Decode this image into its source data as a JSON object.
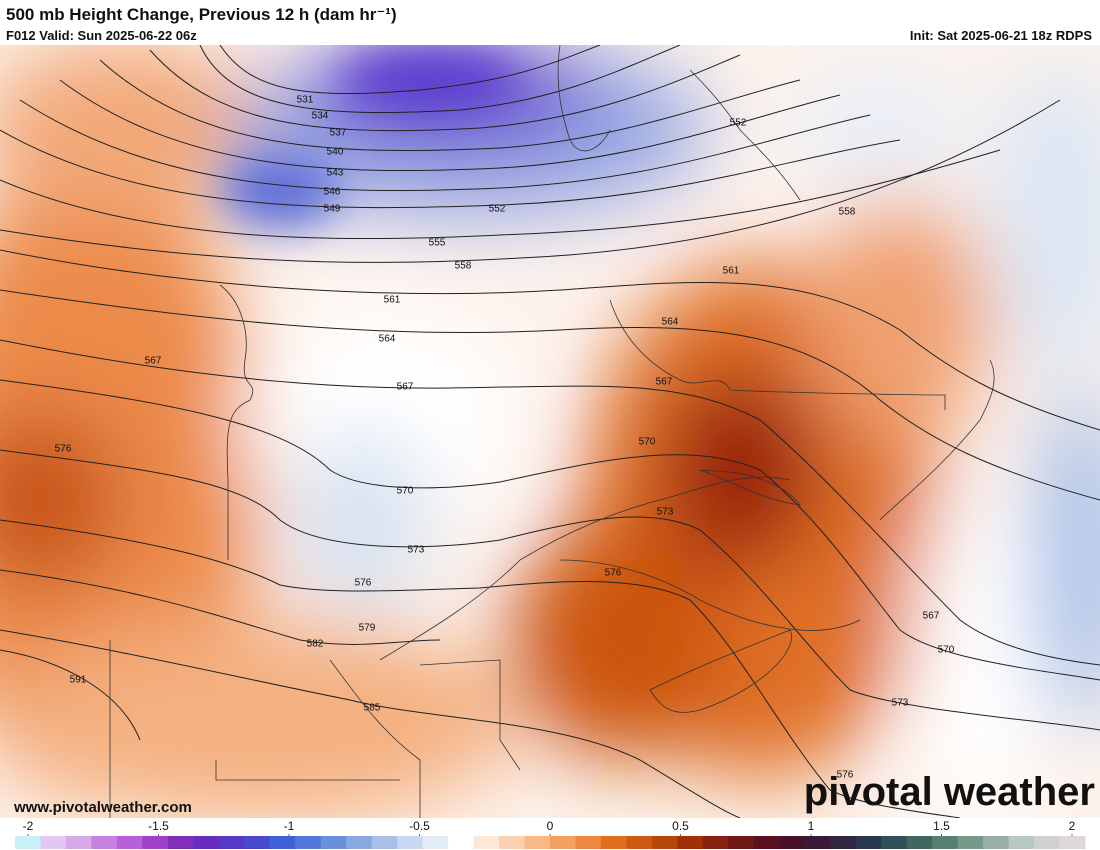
{
  "header": {
    "title": "500 mb Height Change, Previous 12 h (dam hr⁻¹)",
    "valid": "F012 Valid: Sun 2025-06-22 06z",
    "init": "Init: Sat 2025-06-21 18z RDPS"
  },
  "contour_labels": [
    "531",
    "534",
    "537",
    "540",
    "543",
    "546",
    "549",
    "552",
    "555",
    "558",
    "561",
    "564",
    "567",
    "570",
    "573",
    "576",
    "579",
    "582",
    "585",
    "591",
    "576",
    "567",
    "564",
    "567",
    "570",
    "573",
    "576",
    "558",
    "561",
    "552",
    "567",
    "570",
    "573",
    "576"
  ],
  "website": "www.pivotalweather.com",
  "logo": "pivotal weather",
  "colorbar": {
    "lim": [
      -2,
      2
    ],
    "ticks": [
      -2,
      -1.5,
      -1,
      -0.5,
      0,
      0.5,
      1,
      1.5,
      2
    ],
    "colors": [
      "#c8f0f8",
      "#e0c8f0",
      "#d8a8e8",
      "#c880e0",
      "#b860d8",
      "#a040c8",
      "#8030b8",
      "#6a2cc0",
      "#5838c8",
      "#4848d0",
      "#4060d8",
      "#5078d8",
      "#6a90dc",
      "#88a8e0",
      "#a8c0e8",
      "#c8d8f0",
      "#e4ecf8",
      "#ffffff",
      "#fde8d8",
      "#fbd0b0",
      "#f8b888",
      "#f4a060",
      "#ee8840",
      "#e07020",
      "#cc5a10",
      "#b84808",
      "#a03008",
      "#882010",
      "#701818",
      "#5a1020",
      "#48102a",
      "#3a1838",
      "#302840",
      "#2a3850",
      "#30505a",
      "#406860",
      "#588070",
      "#789888",
      "#98b0a8",
      "#b8c8c4",
      "#d0d0d0",
      "#e0d8d8"
    ]
  }
}
